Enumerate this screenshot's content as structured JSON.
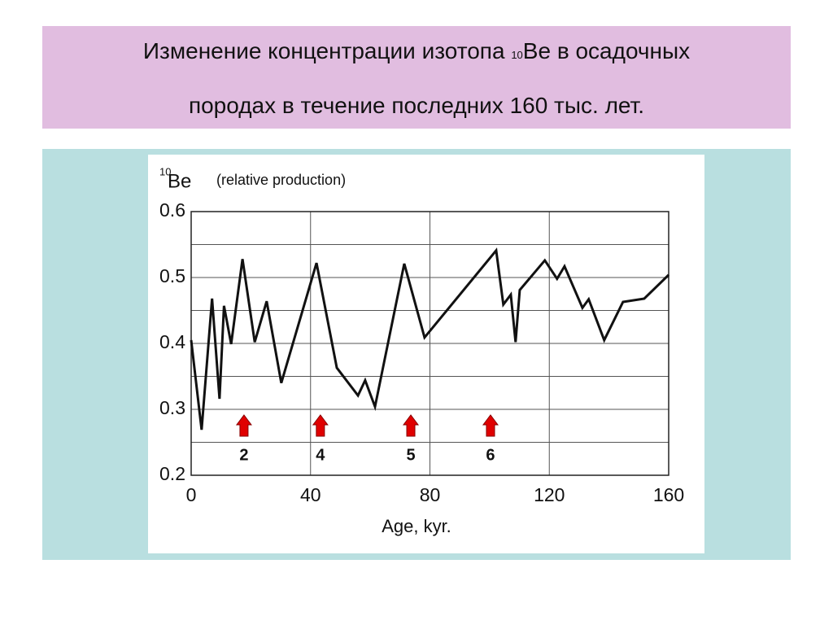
{
  "title": [
    "Изменение концентрации изотопа",
    "10",
    "Be в осадочных",
    "породах в течение последних 160 тыс. лет."
  ],
  "chart_data": {
    "type": "line",
    "y_label": [
      "10",
      "Be",
      "(relative production)"
    ],
    "x_label": "Age, kyr.",
    "x": [
      0,
      3.5,
      7,
      9.5,
      11,
      13.4,
      17.2,
      21.3,
      25.3,
      30.2,
      42,
      48.8,
      55.9,
      58.3,
      61.6,
      71.4,
      78.2,
      102.2,
      104.6,
      107.1,
      108.7,
      110.1,
      118.5,
      122.6,
      125.1,
      131.1,
      133.2,
      138.4,
      144.7,
      151.8,
      160
    ],
    "values": [
      0.405,
      0.269,
      0.468,
      0.316,
      0.457,
      0.399,
      0.528,
      0.402,
      0.464,
      0.34,
      0.522,
      0.363,
      0.321,
      0.344,
      0.304,
      0.521,
      0.409,
      0.541,
      0.459,
      0.474,
      0.402,
      0.481,
      0.526,
      0.498,
      0.517,
      0.454,
      0.467,
      0.405,
      0.463,
      0.468,
      0.504
    ],
    "color": "#111111",
    "xlim": [
      0,
      160
    ],
    "xticks": [
      0,
      40,
      80,
      120,
      160
    ],
    "ylim": [
      0.2,
      0.6
    ],
    "yticks": [
      0.2,
      0.3,
      0.4,
      0.5,
      0.6
    ],
    "grid": true,
    "markers": [
      {
        "x": 17.7,
        "label": "2"
      },
      {
        "x": 43.3,
        "label": "4"
      },
      {
        "x": 73.6,
        "label": "5"
      },
      {
        "x": 100.3,
        "label": "6"
      }
    ],
    "marker_color": "#e00000"
  }
}
